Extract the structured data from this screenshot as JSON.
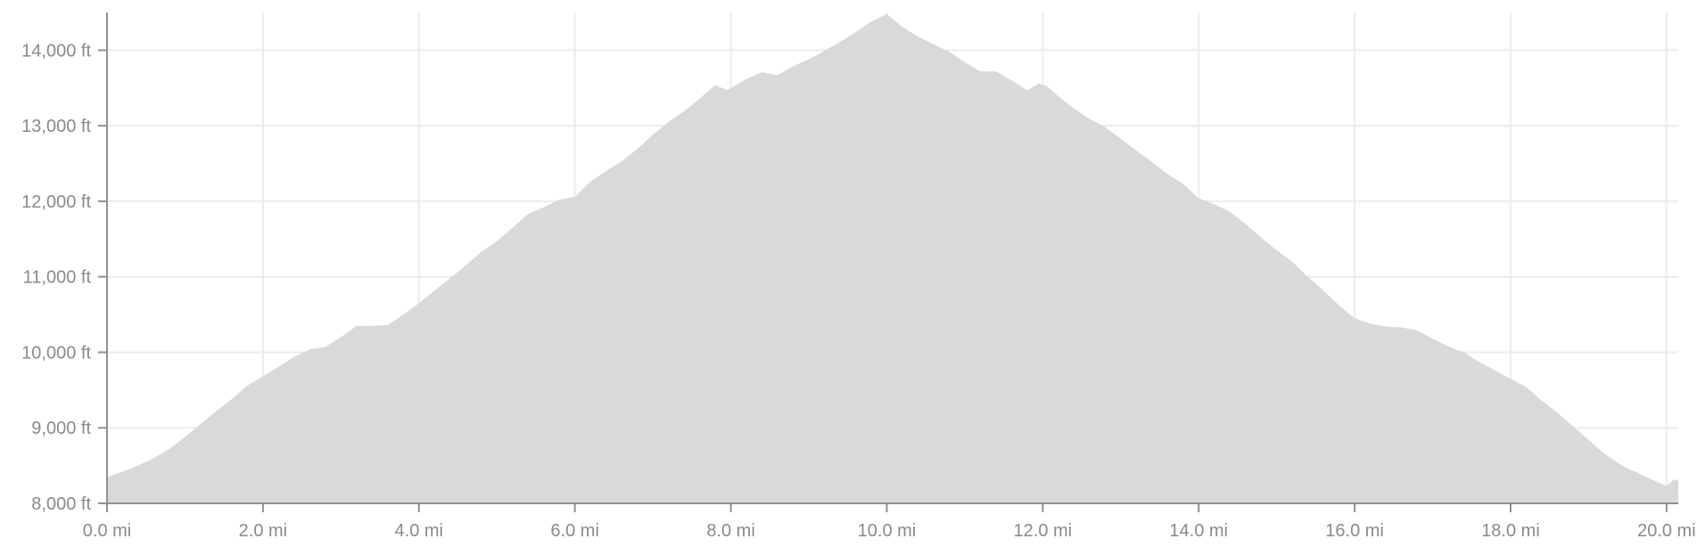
{
  "chart_data": {
    "type": "area",
    "title": "",
    "xlabel": "",
    "ylabel": "",
    "xlim": [
      0,
      20.15
    ],
    "ylim": [
      8000,
      14500
    ],
    "grid": true,
    "legend": "none",
    "x_ticks": [
      {
        "value": 0,
        "label": "0.0 mi"
      },
      {
        "value": 2,
        "label": "2.0 mi"
      },
      {
        "value": 4,
        "label": "4.0 mi"
      },
      {
        "value": 6,
        "label": "6.0 mi"
      },
      {
        "value": 8,
        "label": "8.0 mi"
      },
      {
        "value": 10,
        "label": "10.0 mi"
      },
      {
        "value": 12,
        "label": "12.0 mi"
      },
      {
        "value": 14,
        "label": "14.0 mi"
      },
      {
        "value": 16,
        "label": "16.0 mi"
      },
      {
        "value": 18,
        "label": "18.0 mi"
      },
      {
        "value": 20,
        "label": "20.0 mi"
      }
    ],
    "y_ticks": [
      {
        "value": 8000,
        "label": "8,000 ft"
      },
      {
        "value": 9000,
        "label": "9,000 ft"
      },
      {
        "value": 10000,
        "label": "10,000 ft"
      },
      {
        "value": 11000,
        "label": "11,000 ft"
      },
      {
        "value": 12000,
        "label": "12,000 ft"
      },
      {
        "value": 13000,
        "label": "13,000 ft"
      },
      {
        "value": 14000,
        "label": "14,000 ft"
      }
    ],
    "colors": {
      "fill": "#d9d9d9",
      "axis": "#8f8f8f",
      "grid": "#ececec",
      "tick_label": "#8a8a8a"
    },
    "series": [
      {
        "x": [
          0,
          0.2,
          0.4,
          0.6,
          0.8,
          1.0,
          1.2,
          1.4,
          1.6,
          1.8,
          2.0,
          2.2,
          2.4,
          2.6,
          2.8,
          3.0,
          3.2,
          3.4,
          3.6,
          3.8,
          4.0,
          4.2,
          4.4,
          4.6,
          4.8,
          5.0,
          5.2,
          5.4,
          5.6,
          5.8,
          6.0,
          6.2,
          6.4,
          6.6,
          6.8,
          7.0,
          7.2,
          7.4,
          7.6,
          7.8,
          7.95,
          8.1,
          8.2,
          8.4,
          8.6,
          8.8,
          9.0,
          9.2,
          9.4,
          9.6,
          9.8,
          10.0,
          10.2,
          10.4,
          10.6,
          10.8,
          11.0,
          11.2,
          11.4,
          11.6,
          11.8,
          11.95,
          12.05,
          12.2,
          12.4,
          12.6,
          12.8,
          13.0,
          13.2,
          13.4,
          13.6,
          13.8,
          14.0,
          14.2,
          14.4,
          14.6,
          14.8,
          15.0,
          15.2,
          15.4,
          15.6,
          15.8,
          16.0,
          16.2,
          16.4,
          16.6,
          16.8,
          17.0,
          17.2,
          17.4,
          17.6,
          17.8,
          18.0,
          18.2,
          18.4,
          18.6,
          18.8,
          19.0,
          19.2,
          19.4,
          19.5,
          19.6,
          19.8,
          20.0,
          20.1,
          20.15
        ],
        "y": [
          8350,
          8420,
          8500,
          8600,
          8720,
          8880,
          9050,
          9220,
          9380,
          9560,
          9680,
          9810,
          9940,
          10040,
          10070,
          10200,
          10350,
          10350,
          10360,
          10500,
          10650,
          10820,
          10980,
          11150,
          11330,
          11470,
          11650,
          11830,
          11920,
          12020,
          12060,
          12260,
          12400,
          12530,
          12690,
          12880,
          13050,
          13190,
          13360,
          13540,
          13470,
          13560,
          13620,
          13710,
          13670,
          13790,
          13880,
          13990,
          14110,
          14240,
          14380,
          14480,
          14310,
          14180,
          14080,
          13980,
          13840,
          13720,
          13720,
          13600,
          13470,
          13560,
          13530,
          13390,
          13230,
          13090,
          12980,
          12830,
          12670,
          12520,
          12360,
          12230,
          12040,
          11960,
          11860,
          11700,
          11520,
          11350,
          11200,
          11000,
          10820,
          10620,
          10450,
          10380,
          10340,
          10330,
          10290,
          10180,
          10080,
          10000,
          9870,
          9760,
          9650,
          9540,
          9360,
          9200,
          9020,
          8840,
          8660,
          8520,
          8460,
          8420,
          8320,
          8230,
          8320,
          8300
        ]
      }
    ]
  }
}
